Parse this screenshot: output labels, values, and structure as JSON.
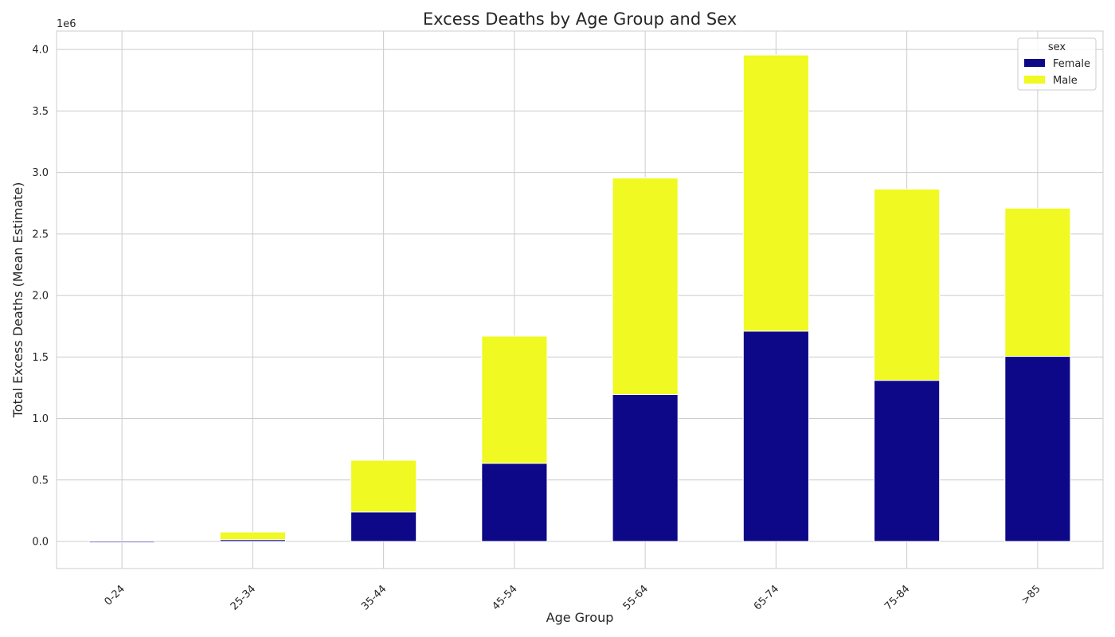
{
  "chart_data": {
    "type": "bar",
    "stacked": true,
    "title": "Excess Deaths by Age Group and Sex",
    "xlabel": "Age Group",
    "ylabel": "Total Excess Deaths (Mean Estimate)",
    "y_offset_label": "1e6",
    "categories": [
      "0-24",
      "25-34",
      "35-44",
      "45-54",
      "55-64",
      "65-74",
      "75-84",
      ">85"
    ],
    "series": [
      {
        "name": "Female",
        "color": "#0d0887",
        "values": [
          -10000,
          15000,
          240000,
          635000,
          1195000,
          1710000,
          1310000,
          1505000
        ]
      },
      {
        "name": "Male",
        "color": "#f0f921",
        "values": [
          0,
          62000,
          420000,
          1035000,
          1760000,
          2245000,
          1555000,
          1205000
        ]
      }
    ],
    "ylim": [
      -220000,
      4150000
    ],
    "yticks": [
      0,
      500000,
      1000000,
      1500000,
      2000000,
      2500000,
      3000000,
      3500000,
      4000000
    ],
    "ytick_labels": [
      "0.0",
      "0.5",
      "1.0",
      "1.5",
      "2.0",
      "2.5",
      "3.0",
      "3.5",
      "4.0"
    ],
    "legend": {
      "title": "sex",
      "position": "top-right"
    },
    "grid": true
  }
}
